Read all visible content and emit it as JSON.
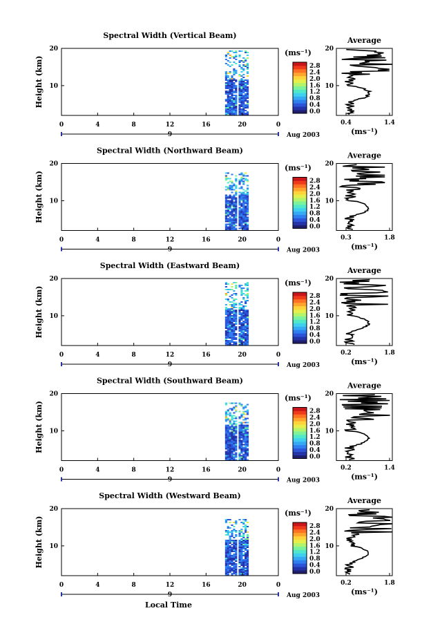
{
  "figure": {
    "xlabel": "Local Time",
    "date_label": "Aug 2003",
    "day_label": "9",
    "average_title": "Average",
    "unit_label": "(ms⁻¹)",
    "colormap": [
      "#1f1f6e",
      "#2433a8",
      "#2b54d8",
      "#2f7ff0",
      "#36a9f5",
      "#3fd0ef",
      "#4fe8c8",
      "#7cf29a",
      "#b3f46a",
      "#e6ee4a",
      "#ffd43a",
      "#ffa52e",
      "#ff7224",
      "#f03a1c",
      "#c8161a"
    ],
    "missing_color": "#ffffff"
  },
  "chart_data": [
    {
      "type": "heatmap",
      "title": "Spectral Width (Vertical Beam)",
      "ylabel": "Height (km)",
      "xlabel": "Local Time",
      "xlim": [
        0,
        24
      ],
      "ylim": [
        2,
        20
      ],
      "xticks": [
        "0",
        "4",
        "8",
        "12",
        "16",
        "20",
        "0"
      ],
      "yticks": [
        "10",
        "20"
      ],
      "colorbar": {
        "min": 0.0,
        "max": 2.8,
        "ticks": [
          "2.8",
          "2.4",
          "2.0",
          "1.6",
          "1.2",
          "0.8",
          "0.4",
          "0.0"
        ]
      },
      "data_segments": [
        [
          18.1,
          19.4
        ],
        [
          19.6,
          20.5
        ]
      ],
      "top_km": 19.3,
      "average": {
        "xlim": [
          0.4,
          1.4
        ],
        "xticks": [
          "0.4",
          "1.4"
        ],
        "yticks": [
          "10",
          "20"
        ],
        "ylim": [
          2,
          20
        ],
        "profile_max": 1.4
      }
    },
    {
      "type": "heatmap",
      "title": "Spectral Width (Northward Beam)",
      "ylabel": "Height (km)",
      "xlabel": "Local Time",
      "xlim": [
        0,
        24
      ],
      "ylim": [
        2,
        20
      ],
      "xticks": [
        "0",
        "4",
        "8",
        "12",
        "16",
        "20",
        "0"
      ],
      "yticks": [
        "10",
        "20"
      ],
      "colorbar": {
        "min": 0.0,
        "max": 2.8,
        "ticks": [
          "2.8",
          "2.4",
          "2.0",
          "1.6",
          "1.2",
          "0.8",
          "0.4",
          "0.0"
        ]
      },
      "data_segments": [
        [
          18.1,
          19.4
        ],
        [
          19.6,
          20.5
        ]
      ],
      "top_km": 17.3,
      "average": {
        "xlim": [
          0.3,
          1.8
        ],
        "xticks": [
          "0.3",
          "1.8"
        ],
        "yticks": [
          "10",
          "20"
        ],
        "ylim": [
          2,
          20
        ],
        "profile_max": 1.6
      }
    },
    {
      "type": "heatmap",
      "title": "Spectral Width (Eastward Beam)",
      "ylabel": "Height (km)",
      "xlabel": "Local Time",
      "xlim": [
        0,
        24
      ],
      "ylim": [
        2,
        20
      ],
      "xticks": [
        "0",
        "4",
        "8",
        "12",
        "16",
        "20",
        "0"
      ],
      "yticks": [
        "10",
        "20"
      ],
      "colorbar": {
        "min": 0.0,
        "max": 2.8,
        "ticks": [
          "2.8",
          "2.4",
          "2.0",
          "1.6",
          "1.2",
          "0.8",
          "0.4",
          "0.0"
        ]
      },
      "data_segments": [
        [
          18.1,
          19.4
        ],
        [
          19.6,
          20.5
        ]
      ],
      "top_km": 18.8,
      "average": {
        "xlim": [
          0.2,
          1.8
        ],
        "xticks": [
          "0.2",
          "1.8"
        ],
        "yticks": [
          "10",
          "20"
        ],
        "ylim": [
          2,
          20
        ],
        "profile_max": 1.7
      }
    },
    {
      "type": "heatmap",
      "title": "Spectral Width (Southward Beam)",
      "ylabel": "Height (km)",
      "xlabel": "Local Time",
      "xlim": [
        0,
        24
      ],
      "ylim": [
        2,
        20
      ],
      "xticks": [
        "0",
        "4",
        "8",
        "12",
        "16",
        "20",
        "0"
      ],
      "yticks": [
        "10",
        "20"
      ],
      "colorbar": {
        "min": 0.0,
        "max": 2.8,
        "ticks": [
          "2.8",
          "2.4",
          "2.0",
          "1.6",
          "1.2",
          "0.8",
          "0.4",
          "0.0"
        ]
      },
      "data_segments": [
        [
          18.1,
          19.4
        ],
        [
          19.6,
          20.5
        ]
      ],
      "top_km": 17.5,
      "average": {
        "xlim": [
          0.2,
          1.4
        ],
        "xticks": [
          "0.2",
          "1.4"
        ],
        "yticks": [
          "10",
          "20"
        ],
        "ylim": [
          2,
          20
        ],
        "profile_max": 1.35
      }
    },
    {
      "type": "heatmap",
      "title": "Spectral Width (Westward Beam)",
      "ylabel": "Height (km)",
      "xlabel": "Local Time",
      "xlim": [
        0,
        24
      ],
      "ylim": [
        2,
        20
      ],
      "xticks": [
        "0",
        "4",
        "8",
        "12",
        "16",
        "20",
        "0"
      ],
      "yticks": [
        "10",
        "20"
      ],
      "colorbar": {
        "min": 0.0,
        "max": 2.8,
        "ticks": [
          "2.8",
          "2.4",
          "2.0",
          "1.6",
          "1.2",
          "0.8",
          "0.4",
          "0.0"
        ]
      },
      "data_segments": [
        [
          18.1,
          19.4
        ],
        [
          19.6,
          20.5
        ]
      ],
      "top_km": 17.4,
      "average": {
        "xlim": [
          0.2,
          1.8
        ],
        "xticks": [
          "0.2",
          "1.8"
        ],
        "yticks": [
          "10",
          "20"
        ],
        "ylim": [
          2,
          20
        ],
        "profile_max": 1.8
      }
    }
  ]
}
